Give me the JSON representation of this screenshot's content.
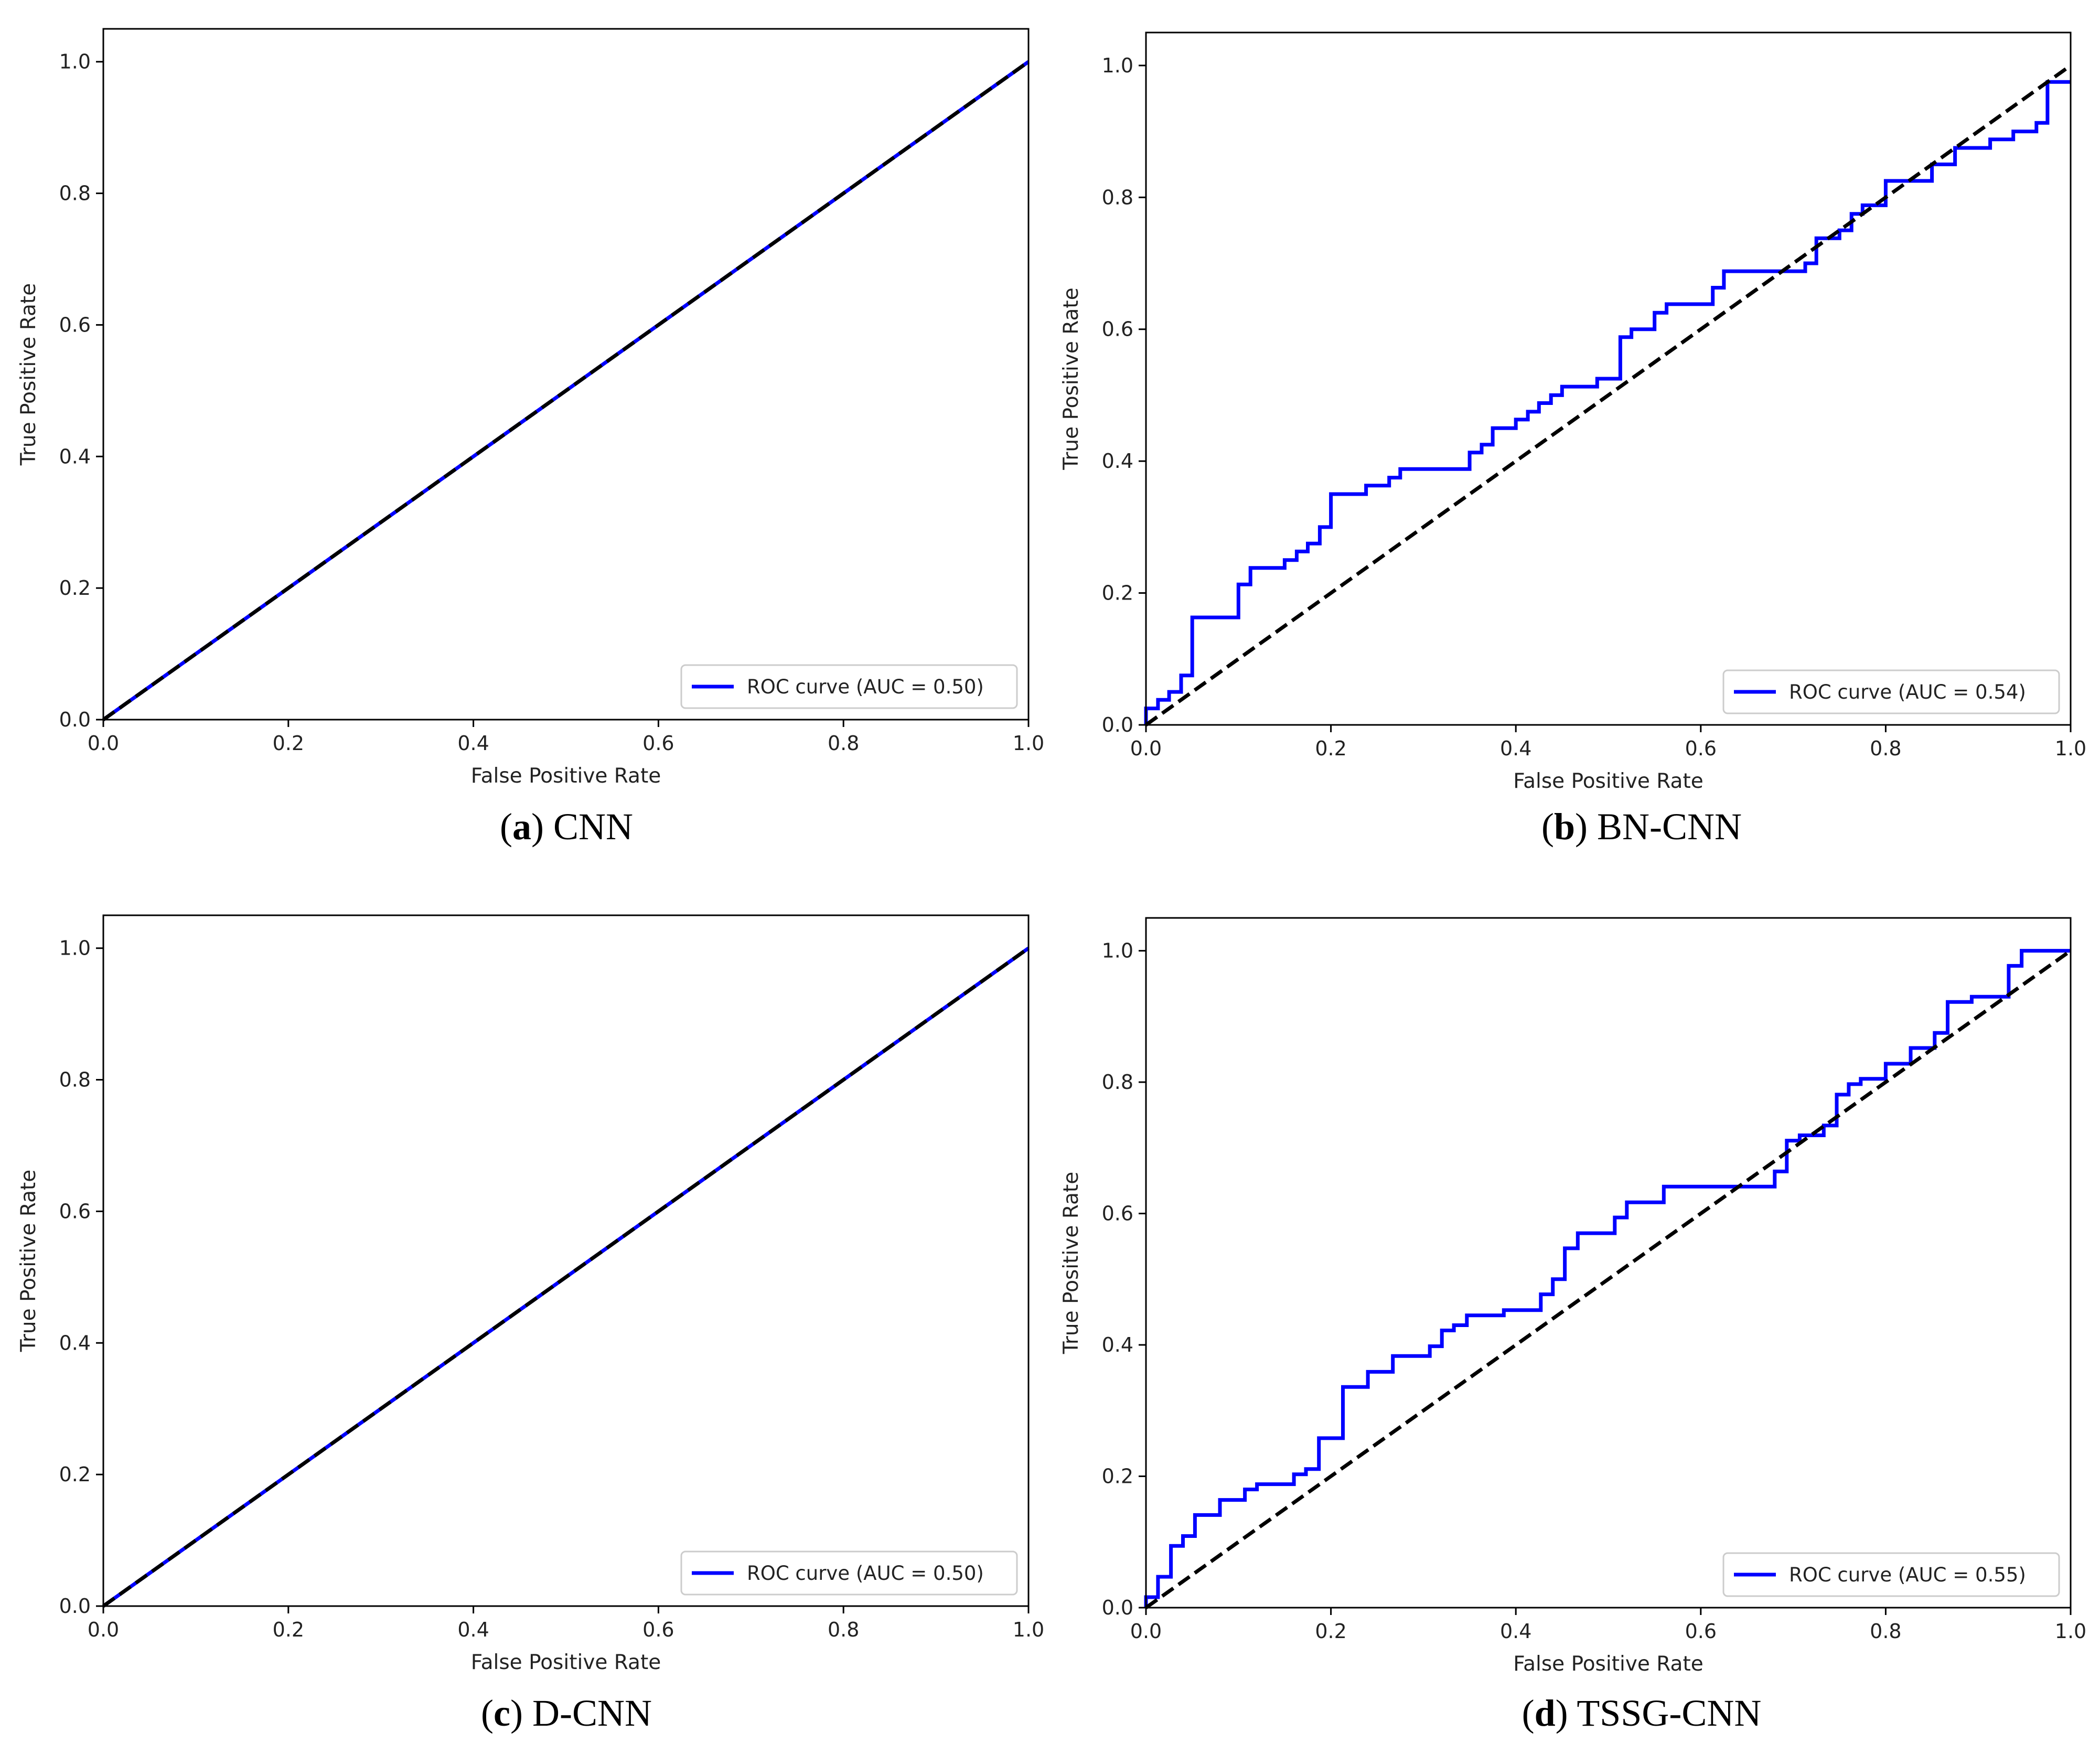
{
  "colors": {
    "roc": "#0000ff",
    "diagonal": "#000000",
    "axis": "#000000",
    "text": "#222222"
  },
  "chart_data": [
    {
      "type": "line",
      "panel_label": "a",
      "caption": "CNN",
      "xlabel": "False Positive Rate",
      "ylabel": "True Positive Rate",
      "xlim": [
        0.0,
        1.0
      ],
      "ylim": [
        0.0,
        1.05
      ],
      "xticks": [
        0.0,
        0.2,
        0.4,
        0.6,
        0.8,
        1.0
      ],
      "yticks": [
        0.0,
        0.2,
        0.4,
        0.6,
        0.8,
        1.0
      ],
      "xtick_labels": [
        "0.0",
        "0.2",
        "0.4",
        "0.6",
        "0.8",
        "1.0"
      ],
      "ytick_labels": [
        "0.0",
        "0.2",
        "0.4",
        "0.6",
        "0.8",
        "1.0"
      ],
      "legend": {
        "label": "ROC curve (AUC = 0.50)",
        "placement": "lower-right"
      },
      "series": [
        {
          "name": "ROC curve (AUC = 0.50)",
          "style": "solid",
          "x": [
            0.0,
            1.0
          ],
          "y": [
            0.0,
            1.0
          ]
        },
        {
          "name": "chance",
          "style": "dashed",
          "x": [
            0.0,
            1.0
          ],
          "y": [
            0.0,
            1.0
          ]
        }
      ]
    },
    {
      "type": "line",
      "panel_label": "b",
      "caption": "BN-CNN",
      "xlabel": "False Positive Rate",
      "ylabel": "True Positive Rate",
      "xlim": [
        0.0,
        1.0
      ],
      "ylim": [
        0.0,
        1.05
      ],
      "xticks": [
        0.0,
        0.2,
        0.4,
        0.6,
        0.8,
        1.0
      ],
      "yticks": [
        0.0,
        0.2,
        0.4,
        0.6,
        0.8,
        1.0
      ],
      "xtick_labels": [
        "0.0",
        "0.2",
        "0.4",
        "0.6",
        "0.8",
        "1.0"
      ],
      "ytick_labels": [
        "0.0",
        "0.2",
        "0.4",
        "0.6",
        "0.8",
        "1.0"
      ],
      "legend": {
        "label": "ROC curve (AUC = 0.54)",
        "placement": "lower-right"
      },
      "series": [
        {
          "name": "ROC curve (AUC = 0.54)",
          "style": "solid",
          "x": [
            0.0,
            0.0,
            0.013,
            0.013,
            0.025,
            0.025,
            0.038,
            0.038,
            0.05,
            0.05,
            0.1,
            0.1,
            0.113,
            0.113,
            0.15,
            0.15,
            0.163,
            0.163,
            0.175,
            0.175,
            0.188,
            0.188,
            0.2,
            0.2,
            0.238,
            0.238,
            0.263,
            0.263,
            0.275,
            0.275,
            0.35,
            0.35,
            0.363,
            0.363,
            0.375,
            0.375,
            0.4,
            0.4,
            0.413,
            0.413,
            0.425,
            0.425,
            0.438,
            0.438,
            0.45,
            0.45,
            0.488,
            0.488,
            0.513,
            0.513,
            0.525,
            0.525,
            0.55,
            0.55,
            0.563,
            0.563,
            0.613,
            0.613,
            0.625,
            0.625,
            0.713,
            0.713,
            0.725,
            0.725,
            0.75,
            0.75,
            0.763,
            0.763,
            0.775,
            0.775,
            0.8,
            0.8,
            0.85,
            0.85,
            0.875,
            0.875,
            0.913,
            0.913,
            0.938,
            0.938,
            0.963,
            0.963,
            0.975,
            0.975,
            1.0
          ],
          "y": [
            0.0,
            0.025,
            0.025,
            0.038,
            0.038,
            0.05,
            0.05,
            0.075,
            0.075,
            0.163,
            0.163,
            0.213,
            0.213,
            0.238,
            0.238,
            0.25,
            0.25,
            0.263,
            0.263,
            0.275,
            0.275,
            0.3,
            0.3,
            0.35,
            0.35,
            0.363,
            0.363,
            0.375,
            0.375,
            0.388,
            0.388,
            0.413,
            0.413,
            0.425,
            0.425,
            0.45,
            0.45,
            0.463,
            0.463,
            0.475,
            0.475,
            0.488,
            0.488,
            0.5,
            0.5,
            0.513,
            0.513,
            0.525,
            0.525,
            0.588,
            0.588,
            0.6,
            0.6,
            0.625,
            0.625,
            0.638,
            0.638,
            0.663,
            0.663,
            0.688,
            0.688,
            0.7,
            0.7,
            0.738,
            0.738,
            0.75,
            0.75,
            0.775,
            0.775,
            0.788,
            0.788,
            0.825,
            0.825,
            0.85,
            0.85,
            0.875,
            0.875,
            0.888,
            0.888,
            0.9,
            0.9,
            0.913,
            0.913,
            0.975,
            0.975
          ]
        },
        {
          "name": "chance",
          "style": "dashed",
          "x": [
            0.0,
            1.0
          ],
          "y": [
            0.0,
            1.0
          ]
        }
      ]
    },
    {
      "type": "line",
      "panel_label": "c",
      "caption": "D-CNN",
      "xlabel": "False Positive Rate",
      "ylabel": "True Positive Rate",
      "xlim": [
        0.0,
        1.0
      ],
      "ylim": [
        0.0,
        1.05
      ],
      "xticks": [
        0.0,
        0.2,
        0.4,
        0.6,
        0.8,
        1.0
      ],
      "yticks": [
        0.0,
        0.2,
        0.4,
        0.6,
        0.8,
        1.0
      ],
      "xtick_labels": [
        "0.0",
        "0.2",
        "0.4",
        "0.6",
        "0.8",
        "1.0"
      ],
      "ytick_labels": [
        "0.0",
        "0.2",
        "0.4",
        "0.6",
        "0.8",
        "1.0"
      ],
      "legend": {
        "label": "ROC curve (AUC = 0.50)",
        "placement": "lower-right"
      },
      "series": [
        {
          "name": "ROC curve (AUC = 0.50)",
          "style": "solid",
          "x": [
            0.0,
            1.0
          ],
          "y": [
            0.0,
            1.0
          ]
        },
        {
          "name": "chance",
          "style": "dashed",
          "x": [
            0.0,
            1.0
          ],
          "y": [
            0.0,
            1.0
          ]
        }
      ]
    },
    {
      "type": "line",
      "panel_label": "d",
      "caption": "TSSG-CNN",
      "xlabel": "False Positive Rate",
      "ylabel": "True Positive Rate",
      "xlim": [
        0.0,
        1.0
      ],
      "ylim": [
        0.0,
        1.05
      ],
      "xticks": [
        0.0,
        0.2,
        0.4,
        0.6,
        0.8,
        1.0
      ],
      "yticks": [
        0.0,
        0.2,
        0.4,
        0.6,
        0.8,
        1.0
      ],
      "xtick_labels": [
        "0.0",
        "0.2",
        "0.4",
        "0.6",
        "0.8",
        "1.0"
      ],
      "ytick_labels": [
        "0.0",
        "0.2",
        "0.4",
        "0.6",
        "0.8",
        "1.0"
      ],
      "legend": {
        "label": "ROC curve (AUC = 0.55)",
        "placement": "lower-right"
      },
      "series": [
        {
          "name": "ROC curve (AUC = 0.55)",
          "style": "solid",
          "x": [
            0.0,
            0.0,
            0.013,
            0.013,
            0.027,
            0.027,
            0.04,
            0.04,
            0.053,
            0.053,
            0.08,
            0.08,
            0.107,
            0.107,
            0.12,
            0.12,
            0.16,
            0.16,
            0.173,
            0.173,
            0.187,
            0.187,
            0.213,
            0.213,
            0.24,
            0.24,
            0.267,
            0.267,
            0.307,
            0.307,
            0.32,
            0.32,
            0.333,
            0.333,
            0.347,
            0.347,
            0.387,
            0.387,
            0.427,
            0.427,
            0.44,
            0.44,
            0.453,
            0.453,
            0.467,
            0.467,
            0.507,
            0.507,
            0.52,
            0.52,
            0.56,
            0.56,
            0.68,
            0.68,
            0.693,
            0.693,
            0.707,
            0.707,
            0.733,
            0.733,
            0.747,
            0.747,
            0.76,
            0.76,
            0.773,
            0.773,
            0.8,
            0.8,
            0.827,
            0.827,
            0.853,
            0.853,
            0.867,
            0.867,
            0.893,
            0.893,
            0.933,
            0.933,
            0.947,
            0.947,
            1.0
          ],
          "y": [
            0.0,
            0.016,
            0.016,
            0.047,
            0.047,
            0.094,
            0.094,
            0.109,
            0.109,
            0.141,
            0.141,
            0.164,
            0.164,
            0.18,
            0.18,
            0.188,
            0.188,
            0.203,
            0.203,
            0.211,
            0.211,
            0.258,
            0.258,
            0.336,
            0.336,
            0.359,
            0.359,
            0.383,
            0.383,
            0.398,
            0.398,
            0.422,
            0.422,
            0.43,
            0.43,
            0.445,
            0.445,
            0.453,
            0.453,
            0.477,
            0.477,
            0.5,
            0.5,
            0.547,
            0.547,
            0.57,
            0.57,
            0.594,
            0.594,
            0.617,
            0.617,
            0.641,
            0.641,
            0.664,
            0.664,
            0.711,
            0.711,
            0.719,
            0.719,
            0.734,
            0.734,
            0.781,
            0.781,
            0.797,
            0.797,
            0.805,
            0.805,
            0.828,
            0.828,
            0.852,
            0.852,
            0.875,
            0.875,
            0.922,
            0.922,
            0.93,
            0.93,
            0.977,
            0.977,
            1.0,
            1.0
          ]
        },
        {
          "name": "chance",
          "style": "dashed",
          "x": [
            0.0,
            1.0
          ],
          "y": [
            0.0,
            1.0
          ]
        }
      ]
    }
  ]
}
